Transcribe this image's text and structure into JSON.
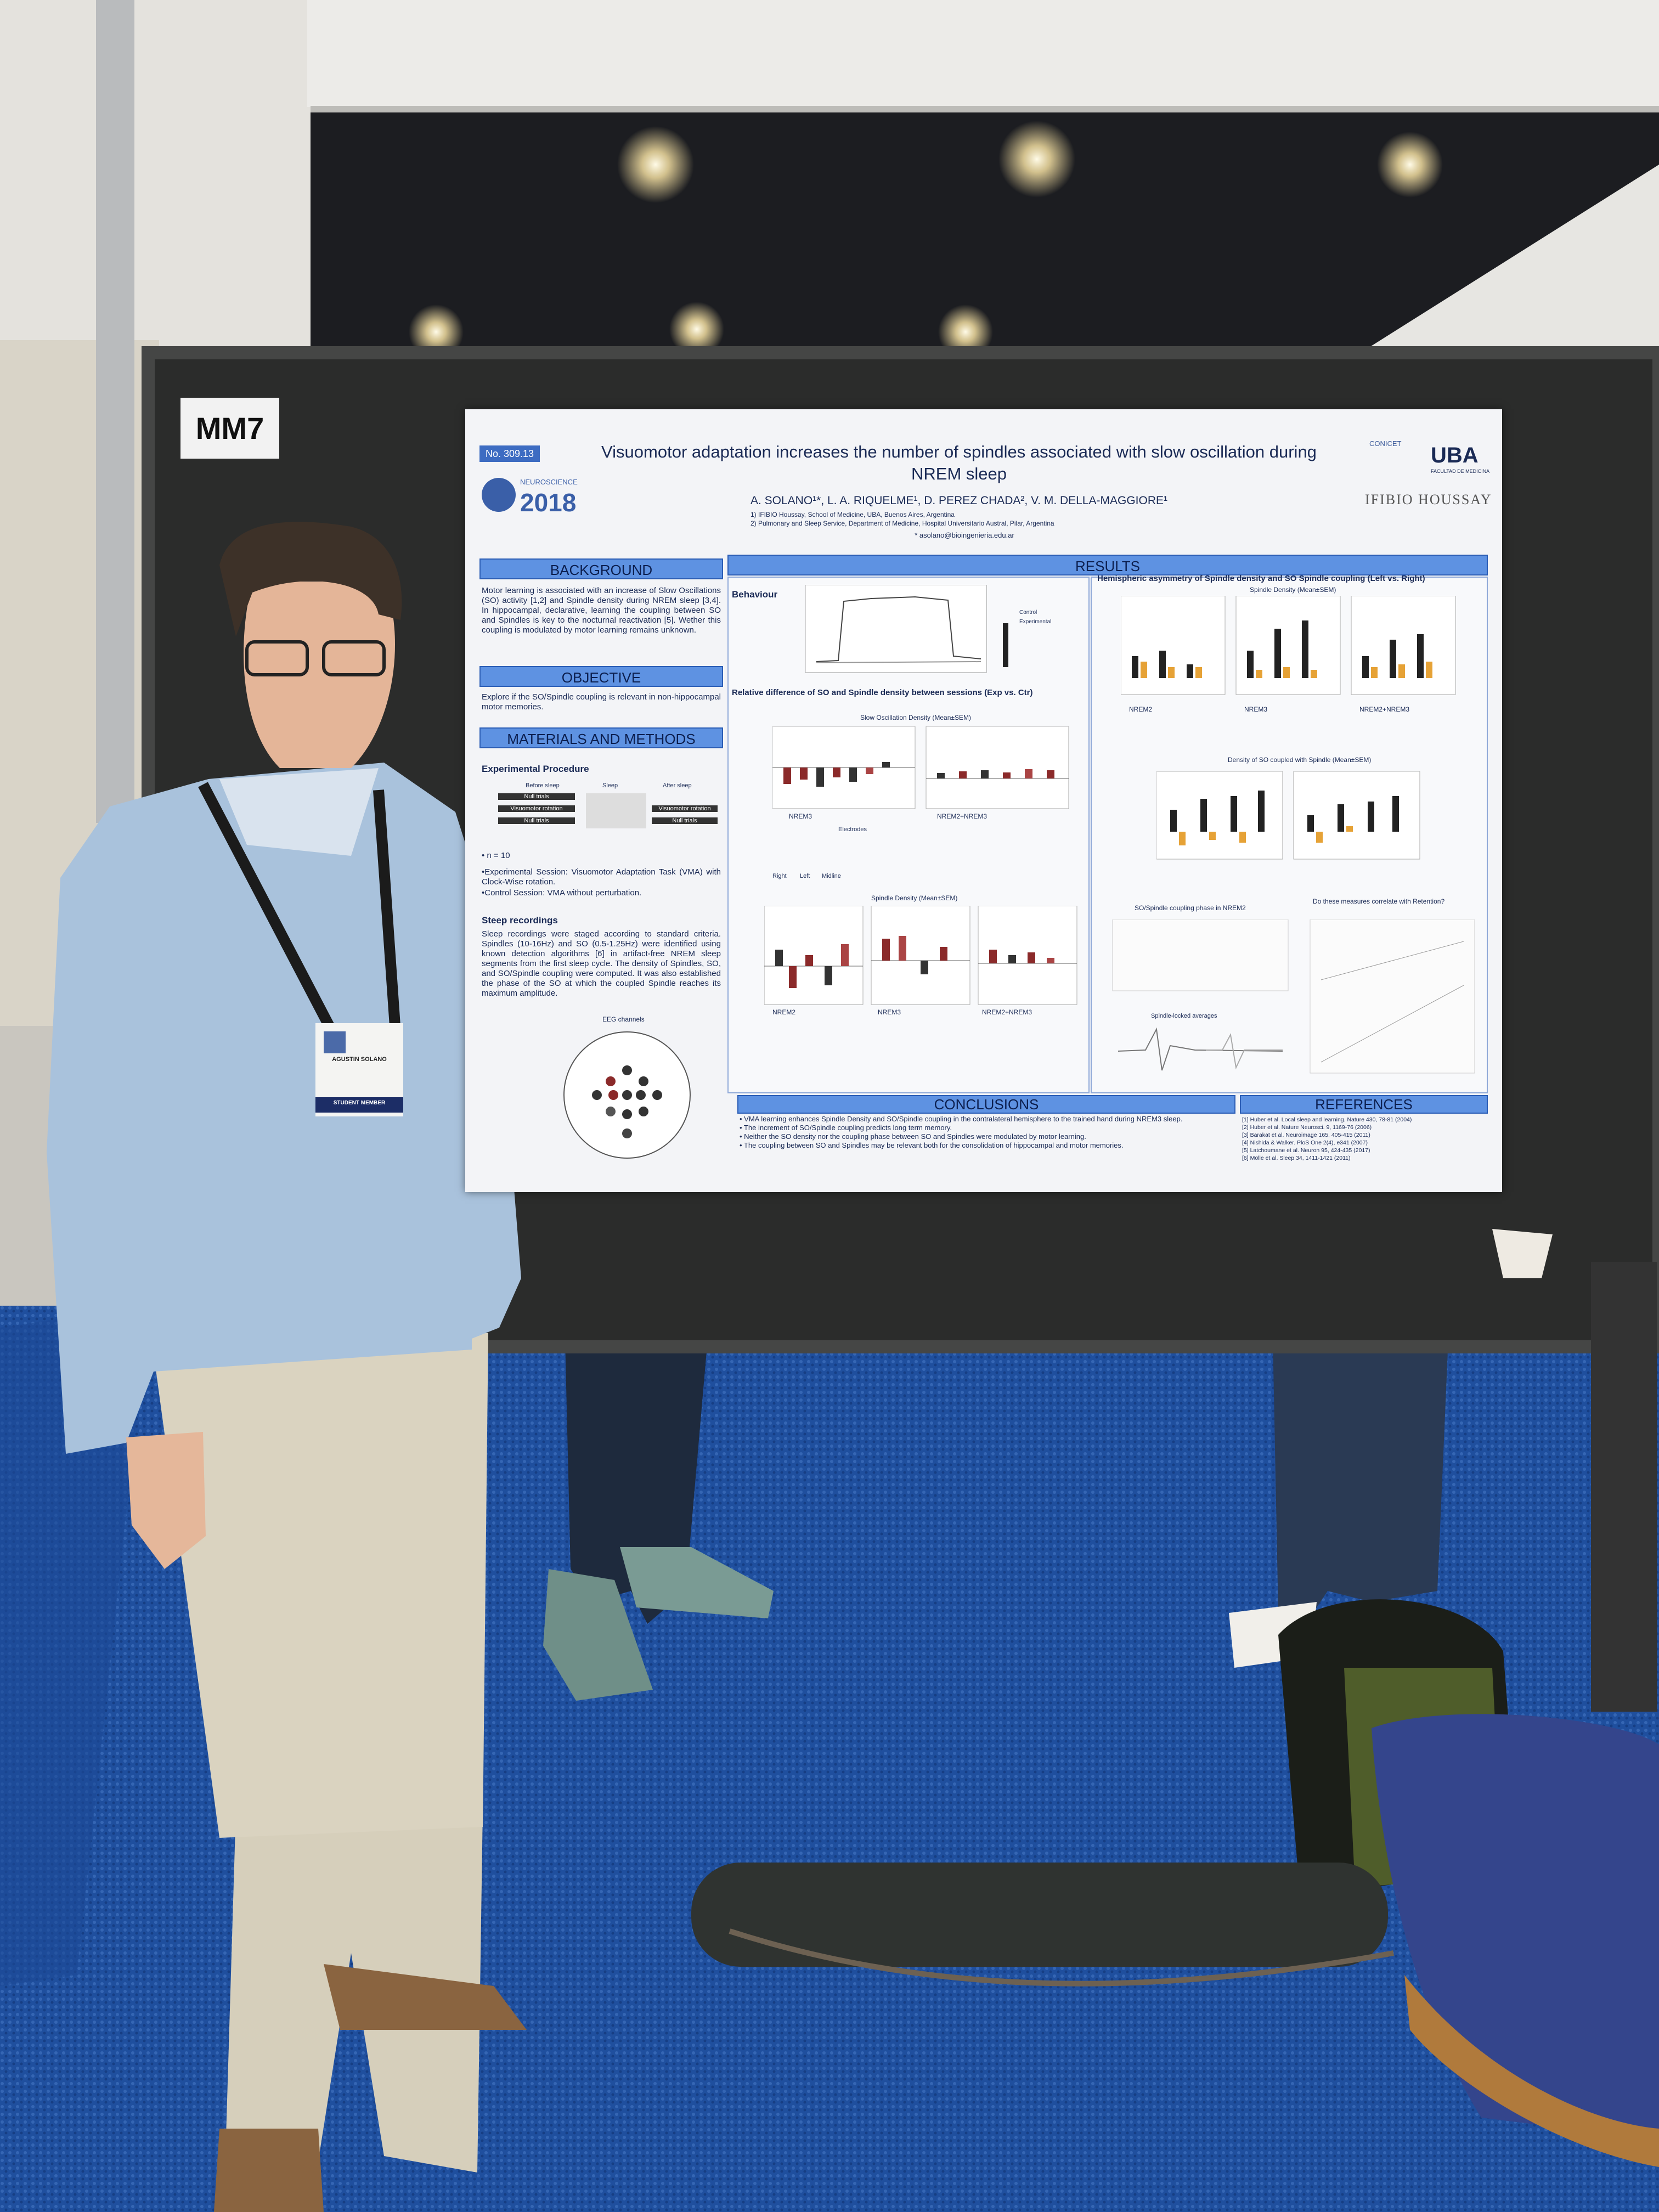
{
  "booth_label": "MM7",
  "poster": {
    "number": "No. 309.13",
    "meeting": {
      "name": "NEUROSCIENCE",
      "year": "2018"
    },
    "title": [
      "Visuomotor adaptation increases the number of spindles associated with slow oscillation during",
      "NREM sleep"
    ],
    "authors": "A. SOLANO¹*, L. A. RIQUELME¹, D. PEREZ CHADA², V. M. DELLA-MAGGIORE¹",
    "affiliations": [
      "1) IFIBIO Houssay, School of Medicine, UBA, Buenos Aires, Argentina",
      "2) Pulmonary and Sleep Service, Department of Medicine, Hospital Universitario Austral, Pilar, Argentina"
    ],
    "email": "* asolano@bioingenieria.edu.ar",
    "logos": {
      "conicet": "CONICET",
      "uba": "UBA",
      "faculty": "FACULTAD DE MEDICINA",
      "institute": "IFIBIO HOUSSAY"
    },
    "background": {
      "heading": "BACKGROUND",
      "text": "Motor learning is associated with an increase of Slow Oscillations (SO) activity [1,2] and Spindle density during NREM sleep [3,4]. In hippocampal, declarative, learning the coupling between SO and Spindles is key to the nocturnal reactivation [5]. Wether this coupling is modulated by motor learning remains unknown."
    },
    "objective": {
      "heading": "OBJECTIVE",
      "text": "Explore if the SO/Spindle coupling is relevant in non-hippocampal motor memories."
    },
    "methods": {
      "heading": "MATERIALS AND METHODS",
      "procedure_heading": "Experimental Procedure",
      "procedure_columns": [
        "Before sleep",
        "Sleep",
        "After sleep"
      ],
      "procedure_cells": [
        "Null trials",
        "Visuomotor rotation",
        "Null trials",
        "Visuomotor rotation",
        "Null trials"
      ],
      "n": "• n = 10",
      "bullets": [
        "•Experimental Session: Visuomotor Adaptation Task (VMA) with Clock-Wise rotation.",
        "•Control Session: VMA without perturbation."
      ],
      "sleep_heading": "Steep recordings",
      "sleep_text": "Sleep recordings were staged according to standard criteria. Spindles (10-16Hz) and SO (0.5-1.25Hz) were identified using known detection algorithms [6] in artifact-free NREM sleep segments from the first sleep cycle. The density of Spindles, SO, and SO/Spindle coupling were computed. It was also established the phase of the SO at which the coupled Spindle reaches its maximum amplitude.",
      "eeg_label": "EEG channels"
    },
    "results": {
      "heading": "RESULTS",
      "behaviour": "Behaviour",
      "behaviour_legend": [
        "Control",
        "Experimental"
      ],
      "relative_heading": "Relative difference of SO and Spindle density between sessions (Exp vs. Ctr)",
      "so_density": "Slow Oscillation Density (Mean±SEM)",
      "spindle_density": "Spindle Density (Mean±SEM)",
      "stage_labels": [
        "NREM3",
        "NREM2+NREM3",
        "NREM2",
        "NREM3",
        "NREM2+NREM3"
      ],
      "electrodes": "Electrodes",
      "side_legend": [
        "Right",
        "Left",
        "Midline"
      ],
      "asymmetry_heading": "Hemispheric asymmetry of Spindle density and SO Spindle coupling (Left vs. Right)",
      "asym_spindle": "Spindle Density (Mean±SEM)",
      "asym_stages": [
        "NREM2",
        "NREM3",
        "NREM2+NREM3"
      ],
      "coupled_density": "Density of SO coupled with Spindle (Mean±SEM)",
      "coupling_phase": "SO/Spindle coupling phase in NREM2",
      "correlate": "Do these measures correlate with Retention?",
      "spindle_locked": "Spindle-locked averages"
    },
    "conclusions": {
      "heading": "CONCLUSIONS",
      "bullets": [
        "• VMA learning enhances Spindle Density and SO/Spindle coupling in the contralateral hemisphere to the trained hand during NREM3 sleep.",
        "• The increment of SO/Spindle coupling predicts long term memory.",
        "• Neither the SO density nor the coupling phase between SO and Spindles were modulated by motor learning.",
        "• The coupling between SO and Spindles may be relevant both for the consolidation of hippocampal and motor memories."
      ]
    },
    "references": {
      "heading": "REFERENCES",
      "items": [
        "[1] Huber et al. Local sleep and learning. Nature 430, 78-81 (2004)",
        "[2] Huber et al. Nature Neurosci. 9, 1169-76 (2006)",
        "[3] Barakat et al. Neuroimage 165, 405-415 (2011)",
        "[4] Nishida & Walker. PloS One 2(4), e341 (2007)",
        "[5] Latchoumane et al. Neuron 95, 424-435 (2017)",
        "[6] Mölle et al. Sleep 34, 1411-1421 (2011)"
      ]
    }
  },
  "badge": {
    "name": "AGUSTIN SOLANO",
    "role": "STUDENT MEMBER"
  }
}
